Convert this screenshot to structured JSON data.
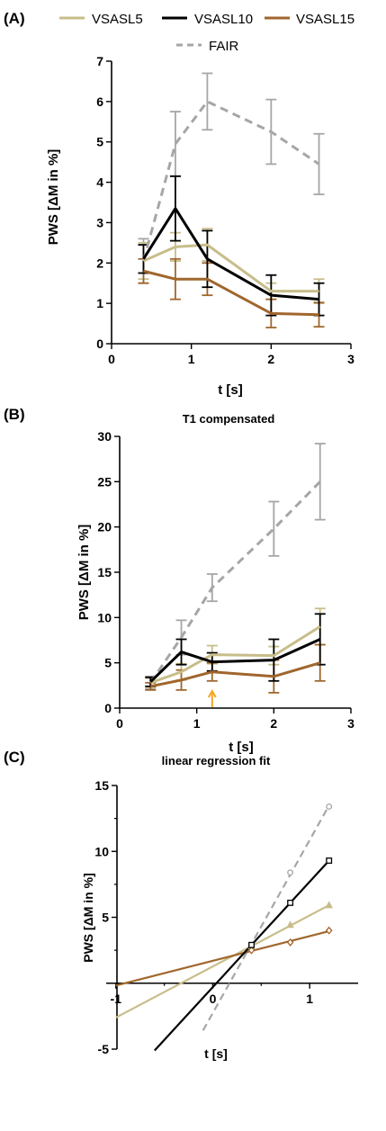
{
  "legend": {
    "entries": [
      {
        "name": "VSASL5",
        "color": "#c8bd8a",
        "dash": false
      },
      {
        "name": "VSASL10",
        "color": "#000000",
        "dash": false
      },
      {
        "name": "VSASL15",
        "color": "#a0662d",
        "dash": false
      },
      {
        "name": "FAIR",
        "color": "#a6a6a6",
        "dash": true
      }
    ]
  },
  "chart_data": [
    {
      "panel": "(A)",
      "type": "line",
      "title": "",
      "xlabel": "t [s]",
      "ylabel": "PWS [ΔM in %]",
      "xlim": [
        0,
        3
      ],
      "ylim": [
        0,
        7
      ],
      "xticks": [
        0,
        1,
        2,
        3
      ],
      "yticks": [
        0,
        1,
        2,
        3,
        4,
        5,
        6,
        7
      ],
      "series": [
        {
          "name": "VSASL5",
          "color": "#c8bd8a",
          "x": [
            0.4,
            0.8,
            1.2,
            2.0,
            2.6
          ],
          "y": [
            2.05,
            2.4,
            2.45,
            1.3,
            1.3
          ],
          "err": [
            0.45,
            0.35,
            0.4,
            0.2,
            0.3
          ]
        },
        {
          "name": "VSASL10",
          "color": "#000000",
          "x": [
            0.4,
            0.8,
            1.2,
            2.0,
            2.6
          ],
          "y": [
            2.1,
            3.35,
            2.1,
            1.2,
            1.1
          ],
          "err": [
            0.35,
            0.8,
            0.7,
            0.5,
            0.4
          ]
        },
        {
          "name": "VSASL15",
          "color": "#a0662d",
          "x": [
            0.4,
            0.8,
            1.2,
            2.0,
            2.6
          ],
          "y": [
            1.8,
            1.6,
            1.6,
            0.75,
            0.72
          ],
          "err": [
            0.3,
            0.5,
            0.4,
            0.35,
            0.3
          ]
        },
        {
          "name": "FAIR",
          "color": "#a6a6a6",
          "dashed": true,
          "x": [
            0.4,
            0.8,
            1.2,
            2.0,
            2.6
          ],
          "y": [
            2.05,
            4.95,
            6.0,
            5.25,
            4.45
          ],
          "err": [
            0.55,
            0.8,
            0.7,
            0.8,
            0.75
          ]
        }
      ]
    },
    {
      "panel": "(B)",
      "type": "line",
      "title": "T1 compensated",
      "xlabel": "t [s]",
      "ylabel": "PWS [ΔM in %]",
      "xlim": [
        0,
        3
      ],
      "ylim": [
        0,
        30
      ],
      "xticks": [
        0,
        1,
        2,
        3
      ],
      "yticks": [
        0,
        5,
        10,
        15,
        20,
        25,
        30
      ],
      "annotation": {
        "type": "arrow",
        "x": 1.2,
        "color": "#f5a623"
      },
      "series": [
        {
          "name": "VSASL5",
          "color": "#c8bd8a",
          "x": [
            0.4,
            0.8,
            1.2,
            2.0,
            2.6
          ],
          "y": [
            2.8,
            4.0,
            5.9,
            5.8,
            9.0
          ],
          "err": [
            0.5,
            0.9,
            1.0,
            1.0,
            2.0
          ]
        },
        {
          "name": "VSASL10",
          "color": "#000000",
          "x": [
            0.4,
            0.8,
            1.2,
            2.0,
            2.6
          ],
          "y": [
            2.9,
            6.2,
            5.1,
            5.3,
            7.6
          ],
          "err": [
            0.5,
            1.4,
            1.0,
            2.3,
            2.8
          ]
        },
        {
          "name": "VSASL15",
          "color": "#a0662d",
          "x": [
            0.4,
            0.8,
            1.2,
            2.0,
            2.6
          ],
          "y": [
            2.4,
            3.1,
            4.0,
            3.5,
            5.0
          ],
          "err": [
            0.4,
            1.1,
            1.0,
            1.8,
            2.0
          ]
        },
        {
          "name": "FAIR",
          "color": "#a6a6a6",
          "dashed": true,
          "x": [
            0.4,
            0.8,
            1.2,
            2.0,
            2.6
          ],
          "y": [
            2.8,
            7.8,
            13.3,
            19.8,
            25.0
          ],
          "err": [
            0.7,
            1.9,
            1.5,
            3.0,
            4.2
          ]
        }
      ]
    },
    {
      "panel": "(C)",
      "type": "scatter",
      "title": "linear regression fit",
      "xlabel": "t [s]",
      "ylabel": "PWS [ΔM in %]",
      "xlim": [
        -1.1,
        1.5
      ],
      "ylim": [
        -5,
        15
      ],
      "xticks": [
        -1,
        0,
        1
      ],
      "yticks": [
        -5,
        5,
        10,
        15
      ],
      "series": [
        {
          "name": "VSASL5",
          "color": "#c8bd8a",
          "marker": "triangle",
          "x": [
            0.4,
            0.8,
            1.2
          ],
          "y": [
            2.8,
            4.4,
            5.9
          ],
          "fit": [
            -1.0,
            1.2
          ]
        },
        {
          "name": "VSASL10",
          "color": "#000000",
          "marker": "square",
          "x": [
            0.4,
            0.8,
            1.2
          ],
          "y": [
            2.9,
            6.1,
            9.3
          ],
          "fit": [
            -0.6,
            1.2
          ]
        },
        {
          "name": "VSASL15",
          "color": "#a0662d",
          "marker": "diamond",
          "x": [
            0.4,
            0.8,
            1.2
          ],
          "y": [
            2.5,
            3.1,
            4.0
          ],
          "fit": [
            -1.0,
            1.2
          ]
        },
        {
          "name": "FAIR",
          "color": "#a6a6a6",
          "dashed": true,
          "marker": "circle",
          "x": [
            0.4,
            0.8,
            1.2
          ],
          "y": [
            2.9,
            8.4,
            13.4
          ],
          "fit": [
            -0.1,
            1.2
          ]
        }
      ]
    }
  ]
}
